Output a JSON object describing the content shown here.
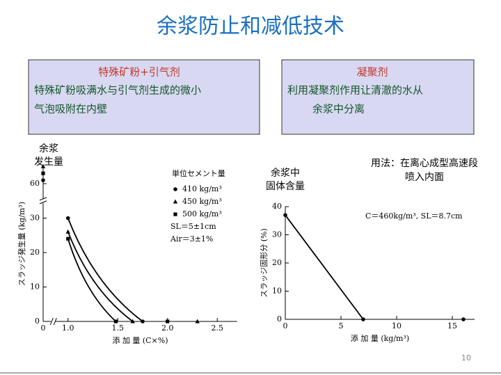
{
  "slide": {
    "title": "余浆防止和减低技术",
    "boxes": [
      {
        "title": "特殊矿粉+引气剂",
        "lines": [
          "特殊矿粉吸满水与引气剂生成的微小",
          "气泡吸附在内壁"
        ]
      },
      {
        "title": "凝聚剂",
        "lines": [
          "利用凝聚剂作用让清澈的水从",
          "余浆中分离"
        ]
      }
    ],
    "notes": [
      {
        "lines": [
          "余浆",
          "发生量"
        ]
      },
      {
        "lines": [
          "余浆中",
          "固体含量"
        ]
      },
      {
        "lines": [
          "用法：在离心成型高速段",
          "喷入内面"
        ]
      }
    ],
    "page_number": "10"
  },
  "chart_data": [
    {
      "type": "scatter-line",
      "xlabel": "添 加 量 (C×%)",
      "ylabel": "スラッジ発生量 (kg/m³)",
      "legend_title": "単位セメント量",
      "annotations": [
        "SL＝5±1cm",
        "Air＝3±1%"
      ],
      "xlim": [
        0,
        2.7
      ],
      "xbreak": [
        0.1,
        0.85
      ],
      "xticks": [
        0,
        {
          "value": 1,
          "label": "1.0"
        },
        1.5,
        {
          "value": 2,
          "label": "2.0"
        },
        2.5
      ],
      "ylim": [
        0,
        65
      ],
      "ybreak": [
        35,
        55
      ],
      "yticks": [
        0,
        10,
        20,
        30,
        60
      ],
      "series": [
        {
          "name": "410 kg/m³",
          "marker": "circle",
          "color": "#000000",
          "x": [
            0,
            1,
            1.75
          ],
          "values": [
            61,
            30,
            0
          ]
        },
        {
          "name": "450 kg/m³",
          "marker": "triangle",
          "color": "#000000",
          "x": [
            0,
            1,
            1.65,
            2.3
          ],
          "values": [
            65,
            26,
            0,
            0
          ]
        },
        {
          "name": "500 kg/m³",
          "marker": "square",
          "color": "#000000",
          "x": [
            0,
            1,
            1.48,
            2
          ],
          "values": [
            63,
            24,
            0,
            0
          ]
        }
      ]
    },
    {
      "type": "scatter-line",
      "xlabel": "添 加 量 (kg/m³)",
      "ylabel": "スラッジ固形分 (%)",
      "annotations": [
        "C＝460kg/m³, SL＝8.7cm"
      ],
      "xlim": [
        0,
        17
      ],
      "xticks": [
        0,
        5,
        10,
        15
      ],
      "ylim": [
        0,
        40
      ],
      "yticks": [
        0,
        10,
        20,
        30,
        40
      ],
      "series": [
        {
          "marker": "circle",
          "color": "#000000",
          "x": [
            0,
            7,
            16
          ],
          "values": [
            37,
            0,
            0
          ]
        }
      ]
    }
  ]
}
